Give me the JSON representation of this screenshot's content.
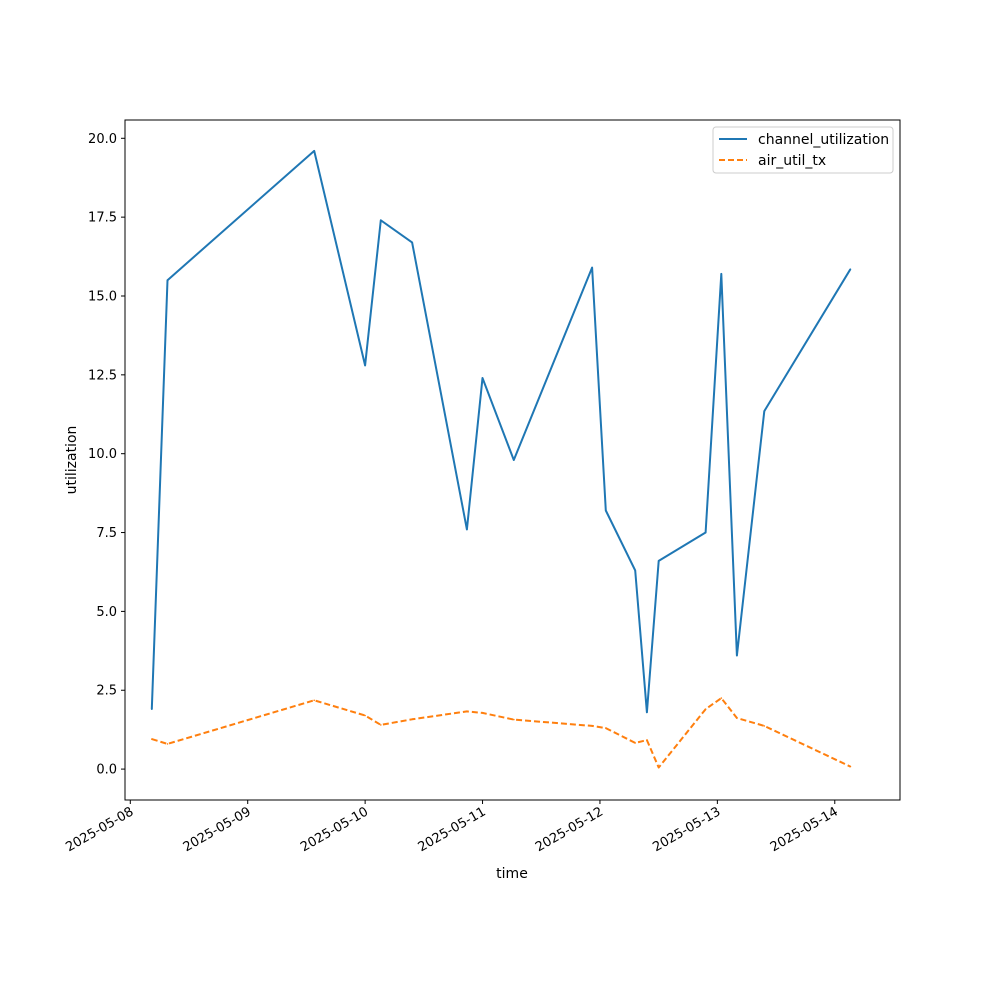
{
  "chart_data": {
    "type": "line",
    "xlabel": "time",
    "ylabel": "utilization",
    "x_axis_type": "date",
    "xlim": [
      "2025-05-07 22:55",
      "2025-05-14 13:20"
    ],
    "ylim": [
      -0.98,
      20.58
    ],
    "x_ticks": [
      "2025-05-08",
      "2025-05-09",
      "2025-05-10",
      "2025-05-11",
      "2025-05-12",
      "2025-05-13",
      "2025-05-14"
    ],
    "y_ticks": [
      "0.0",
      "2.5",
      "5.0",
      "7.5",
      "10.0",
      "12.5",
      "15.0",
      "17.5",
      "20.0"
    ],
    "grid": false,
    "legend_position": "top-right",
    "x": [
      "2025-05-08 04:24",
      "2025-05-08 07:36",
      "2025-05-09 13:36",
      "2025-05-10 00:00",
      "2025-05-10 03:12",
      "2025-05-10 09:36",
      "2025-05-10 20:48",
      "2025-05-11 00:00",
      "2025-05-11 06:24",
      "2025-05-11 22:24",
      "2025-05-12 01:12",
      "2025-05-12 07:12",
      "2025-05-12 09:36",
      "2025-05-12 12:00",
      "2025-05-12 21:36",
      "2025-05-13 00:48",
      "2025-05-13 04:00",
      "2025-05-13 09:36",
      "2025-05-14 03:12"
    ],
    "series": [
      {
        "name": "channel_utilization",
        "color": "#1f77b4",
        "style": "solid",
        "values": [
          1.9,
          15.5,
          19.6,
          12.8,
          17.4,
          16.7,
          7.6,
          12.4,
          9.8,
          15.9,
          8.2,
          6.3,
          1.8,
          6.6,
          7.5,
          15.7,
          3.6,
          11.35,
          15.85
        ]
      },
      {
        "name": "air_util_tx",
        "color": "#ff7f0e",
        "style": "dashed",
        "values": [
          0.95,
          0.8,
          2.18,
          1.7,
          1.4,
          1.58,
          1.83,
          1.78,
          1.57,
          1.37,
          1.3,
          0.83,
          0.92,
          0.05,
          1.9,
          2.25,
          1.62,
          1.37,
          0.08
        ]
      }
    ]
  }
}
